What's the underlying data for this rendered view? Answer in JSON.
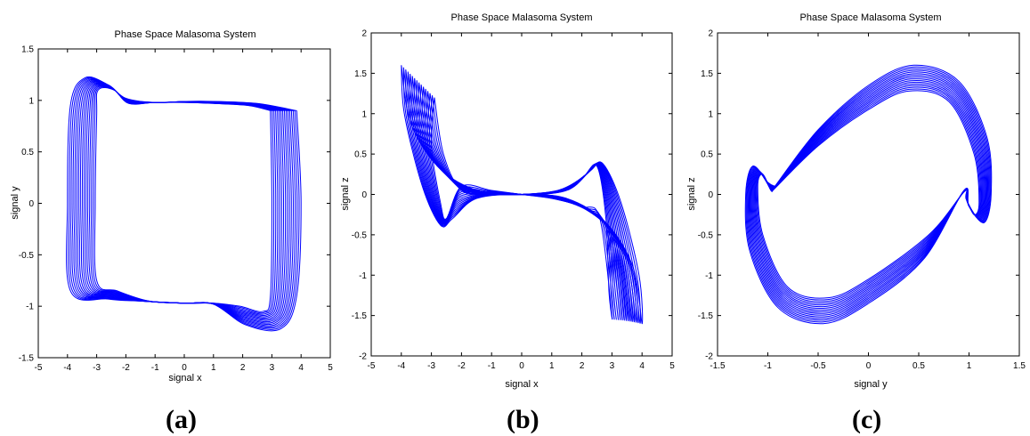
{
  "chart_data": [
    {
      "type": "line",
      "caption": "(a)",
      "title": "Phase Space Malasoma System",
      "xlabel": "signal x",
      "ylabel": "signal y",
      "xlim": [
        -5,
        5
      ],
      "ylim": [
        -1.5,
        1.5
      ],
      "xticks": [
        "-5",
        "-4",
        "-3",
        "-2",
        "-1",
        "0",
        "1",
        "2",
        "3",
        "4",
        "5"
      ],
      "yticks": [
        "-1.5",
        "-1",
        "-0.5",
        "0",
        "0.5",
        "1",
        "1.5"
      ],
      "series_color": "#0000ff",
      "bands": 16,
      "series": [
        {
          "inner": [
            [
              2.95,
              0.9
            ],
            [
              3.0,
              0
            ],
            [
              2.95,
              -0.9
            ],
            [
              2.7,
              -1.05
            ],
            [
              1.9,
              -1.0
            ],
            [
              1.0,
              -0.97
            ],
            [
              0,
              -0.97
            ],
            [
              -1.2,
              -0.95
            ],
            [
              -2.3,
              -0.85
            ],
            [
              -3.0,
              -0.75
            ],
            [
              -3.05,
              0
            ],
            [
              -3.0,
              0.85
            ],
            [
              -2.95,
              1.1
            ],
            [
              -2.4,
              1.1
            ],
            [
              -1.9,
              0.97
            ],
            [
              -1,
              0.98
            ],
            [
              0,
              0.98
            ],
            [
              1.0,
              0.97
            ],
            [
              2.2,
              0.95
            ],
            [
              2.95,
              0.9
            ]
          ],
          "outer": [
            [
              3.85,
              0.9
            ],
            [
              4.0,
              0
            ],
            [
              3.85,
              -0.9
            ],
            [
              3.3,
              -1.22
            ],
            [
              2.1,
              -1.18
            ],
            [
              1.0,
              -0.98
            ],
            [
              0,
              -0.97
            ],
            [
              -1.5,
              -0.95
            ],
            [
              -2.6,
              -0.93
            ],
            [
              -3.9,
              -0.85
            ],
            [
              -4.0,
              0
            ],
            [
              -3.9,
              0.95
            ],
            [
              -3.4,
              1.22
            ],
            [
              -2.6,
              1.15
            ],
            [
              -2.0,
              1.02
            ],
            [
              -1,
              0.98
            ],
            [
              0,
              0.99
            ],
            [
              1.0,
              0.99
            ],
            [
              2.5,
              0.97
            ],
            [
              3.85,
              0.9
            ]
          ]
        }
      ]
    },
    {
      "type": "line",
      "caption": "(b)",
      "title": "Phase Space Malasoma System",
      "xlabel": "signal x",
      "ylabel": "signal z",
      "xlim": [
        -5,
        5
      ],
      "ylim": [
        -2,
        2
      ],
      "xticks": [
        "-5",
        "-4",
        "-3",
        "-2",
        "-1",
        "0",
        "1",
        "2",
        "3",
        "4",
        "5"
      ],
      "yticks": [
        "-2",
        "-1.5",
        "-1",
        "-0.5",
        "0",
        "0.5",
        "1",
        "1.5",
        "2"
      ],
      "series_color": "#0000ff",
      "bands": 16,
      "series": [
        {
          "inner": [
            [
              -2.9,
              1.2
            ],
            [
              -2.6,
              0.5
            ],
            [
              -2.0,
              0.05
            ],
            [
              -1.0,
              0.0
            ],
            [
              0,
              0
            ],
            [
              1.2,
              0.05
            ],
            [
              2.0,
              0.2
            ],
            [
              2.5,
              0.35
            ],
            [
              2.8,
              -0.3
            ],
            [
              2.9,
              -1.2
            ],
            [
              3.0,
              -1.5
            ],
            [
              2.6,
              -0.3
            ],
            [
              2.0,
              -0.15
            ],
            [
              1.0,
              -0.05
            ],
            [
              0,
              0
            ],
            [
              -1.0,
              0.05
            ],
            [
              -2.0,
              0.1
            ],
            [
              -2.5,
              -0.3
            ],
            [
              -2.7,
              -0.1
            ],
            [
              -3.0,
              0.6
            ],
            [
              -2.9,
              1.2
            ]
          ],
          "outer": [
            [
              -4.0,
              1.6
            ],
            [
              -3.7,
              0.9
            ],
            [
              -2.8,
              0.35
            ],
            [
              -1.5,
              0.05
            ],
            [
              0,
              0
            ],
            [
              1.5,
              0.05
            ],
            [
              2.3,
              0.3
            ],
            [
              2.7,
              0.38
            ],
            [
              3.3,
              -0.1
            ],
            [
              3.9,
              -1.0
            ],
            [
              4.0,
              -1.6
            ],
            [
              3.7,
              -0.9
            ],
            [
              2.8,
              -0.35
            ],
            [
              1.5,
              -0.05
            ],
            [
              0,
              0
            ],
            [
              -1.5,
              -0.05
            ],
            [
              -2.3,
              -0.3
            ],
            [
              -2.7,
              -0.38
            ],
            [
              -3.3,
              0.1
            ],
            [
              -3.9,
              1.0
            ],
            [
              -4.0,
              1.6
            ]
          ]
        }
      ]
    },
    {
      "type": "line",
      "caption": "(c)",
      "title": "Phase Space Malasoma System",
      "xlabel": "signal y",
      "ylabel": "signal z",
      "xlim": [
        -1.5,
        1.5
      ],
      "ylim": [
        -2,
        2
      ],
      "xticks": [
        "-1.5",
        "-1",
        "-0.5",
        "0",
        "0.5",
        "1",
        "1.5"
      ],
      "yticks": [
        "-2",
        "-1.5",
        "-1",
        "-0.5",
        "0",
        "0.5",
        "1",
        "1.5",
        "2"
      ],
      "series_color": "#0000ff",
      "bands": 16,
      "series": [
        {
          "inner": [
            [
              -0.95,
              0.05
            ],
            [
              -0.5,
              0.6
            ],
            [
              0,
              1.05
            ],
            [
              0.4,
              1.28
            ],
            [
              0.8,
              1.15
            ],
            [
              1.05,
              0.5
            ],
            [
              1.1,
              -0.1
            ],
            [
              1.05,
              -0.25
            ],
            [
              0.97,
              -0.05
            ],
            [
              0.95,
              0.03
            ],
            [
              0.6,
              -0.5
            ],
            [
              0,
              -1.05
            ],
            [
              -0.4,
              -1.28
            ],
            [
              -0.8,
              -1.15
            ],
            [
              -1.05,
              -0.5
            ],
            [
              -1.1,
              0.1
            ],
            [
              -1.05,
              0.25
            ],
            [
              -0.97,
              0.05
            ],
            [
              -0.95,
              0.05
            ]
          ],
          "outer": [
            [
              -0.93,
              0.1
            ],
            [
              -0.5,
              0.8
            ],
            [
              0,
              1.35
            ],
            [
              0.45,
              1.6
            ],
            [
              0.9,
              1.4
            ],
            [
              1.18,
              0.7
            ],
            [
              1.22,
              0.0
            ],
            [
              1.15,
              -0.35
            ],
            [
              1.0,
              -0.15
            ],
            [
              0.95,
              0.05
            ],
            [
              0.55,
              -0.8
            ],
            [
              0,
              -1.35
            ],
            [
              -0.45,
              -1.6
            ],
            [
              -0.9,
              -1.4
            ],
            [
              -1.18,
              -0.7
            ],
            [
              -1.22,
              0.0
            ],
            [
              -1.15,
              0.35
            ],
            [
              -1.0,
              0.15
            ],
            [
              -0.93,
              0.1
            ]
          ]
        }
      ]
    }
  ]
}
